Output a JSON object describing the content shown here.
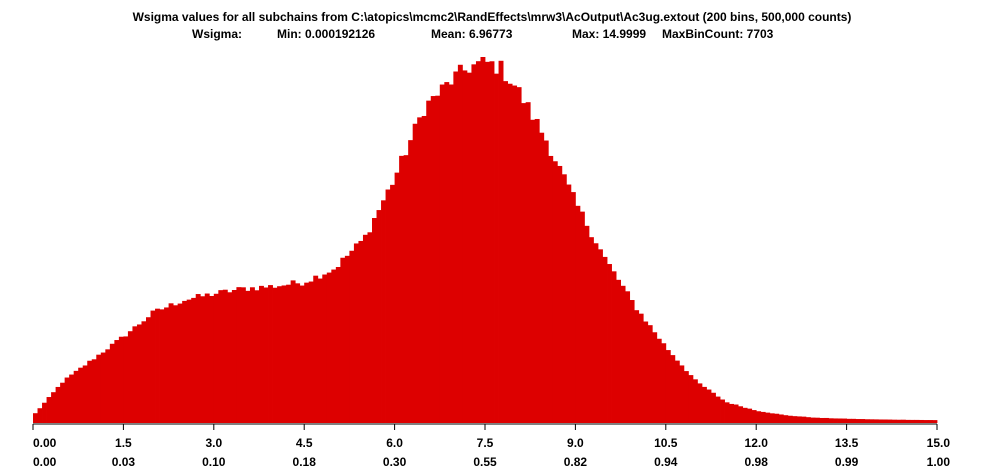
{
  "chart_data": {
    "type": "bar",
    "title": "Wsigma values for all subchains from C:\\atopics\\mcmc2\\RandEffects\\mrw3\\AcOutput\\Ac3ug.extout (200 bins, 500,000 counts)",
    "stats": {
      "label": "Wsigma:",
      "min": "Min: 0.000192126",
      "mean": "Mean: 6.96773",
      "max": "Max: 14.9999",
      "maxbincount": "MaxBinCount: 7703"
    },
    "xlim": [
      0,
      15
    ],
    "ylim": [
      0,
      7703
    ],
    "bins": 200,
    "x_ticks": [
      0.0,
      1.5,
      3.0,
      4.5,
      6.0,
      7.5,
      9.0,
      10.5,
      12.0,
      13.5,
      15.0
    ],
    "x_tick_labels": [
      "0.00",
      "1.5",
      "3.0",
      "4.5",
      "6.0",
      "7.5",
      "9.0",
      "10.5",
      "12.0",
      "13.5",
      "15.0"
    ],
    "cdf_tick_labels": [
      "0.00",
      "0.03",
      "0.10",
      "0.18",
      "0.30",
      "0.55",
      "0.82",
      "0.94",
      "0.98",
      "0.99",
      "1.00"
    ],
    "bar_color": "#dd0000",
    "profile_x": [
      0.0,
      0.5,
      1.0,
      1.5,
      2.0,
      2.5,
      3.0,
      3.5,
      4.0,
      4.5,
      5.0,
      5.5,
      6.0,
      6.5,
      7.0,
      7.25,
      7.5,
      7.75,
      8.0,
      8.5,
      9.0,
      9.5,
      10.0,
      10.5,
      11.0,
      11.5,
      12.0,
      12.5,
      13.0,
      13.5,
      14.0,
      15.0
    ],
    "profile_counts": [
      150,
      880,
      1350,
      1820,
      2330,
      2590,
      2720,
      2830,
      2880,
      2970,
      3250,
      3890,
      5160,
      6660,
      7280,
      7500,
      7590,
      7480,
      7100,
      6000,
      4640,
      3440,
      2440,
      1600,
      880,
      440,
      260,
      160,
      110,
      90,
      75,
      60
    ]
  }
}
